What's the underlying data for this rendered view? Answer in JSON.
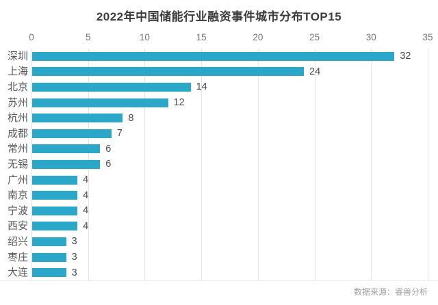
{
  "page": {
    "title": "2022年中国储能行业融资事件城市分布TOP15",
    "source_note": "数据来源：睿兽分析"
  },
  "colors": {
    "bar": "#2aa7c9",
    "title_text": "#3c3c3c",
    "tick_text": "#737373",
    "category_text": "#595959",
    "value_text": "#4a4a4a",
    "gridline": "#e4e4e4",
    "source_text": "#9e9e9e",
    "background": "#ffffff"
  },
  "chart_data": {
    "type": "bar",
    "orientation": "horizontal",
    "title": "2022年中国储能行业融资事件城市分布TOP15",
    "categories": [
      "深圳",
      "上海",
      "北京",
      "苏州",
      "杭州",
      "成都",
      "常州",
      "无锡",
      "广州",
      "南京",
      "宁波",
      "西安",
      "绍兴",
      "枣庄",
      "大连"
    ],
    "values": [
      32,
      24,
      14,
      12,
      8,
      7,
      6,
      6,
      4,
      4,
      4,
      4,
      3,
      3,
      3
    ],
    "value_labels": [
      "32",
      "24",
      "14",
      "12",
      "8",
      "7",
      "6",
      "6",
      "4",
      "4",
      "4",
      "4",
      "3",
      "3",
      "3"
    ],
    "xlabel": "",
    "ylabel": "",
    "xlim": [
      0,
      35
    ],
    "x_ticks": [
      0,
      5,
      10,
      15,
      20,
      25,
      30,
      35
    ],
    "axis_position": "top",
    "grid": "vertical",
    "legend": "none",
    "data_labels": "outside-end",
    "source": "数据来源：睿兽分析"
  }
}
